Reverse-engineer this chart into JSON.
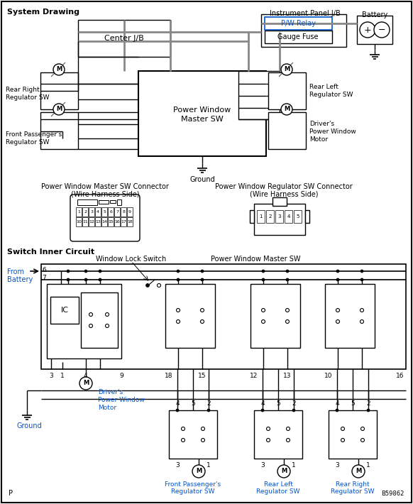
{
  "bg_color": "#ffffff",
  "section1_title": "System Drawing",
  "section2_title": "Switch Inner Circuit",
  "connector1_title": "Power Window Master SW Connector",
  "connector1_subtitle": "(Wire Harness Side)",
  "connector2_title": "Power Window Regulator SW Connector",
  "connector2_subtitle": "(Wire Harness Side)",
  "part_code": "B59862",
  "blue_text": "#0055cc",
  "gray_line": "#888888",
  "black": "#000000",
  "blue_box": "#0055cc"
}
